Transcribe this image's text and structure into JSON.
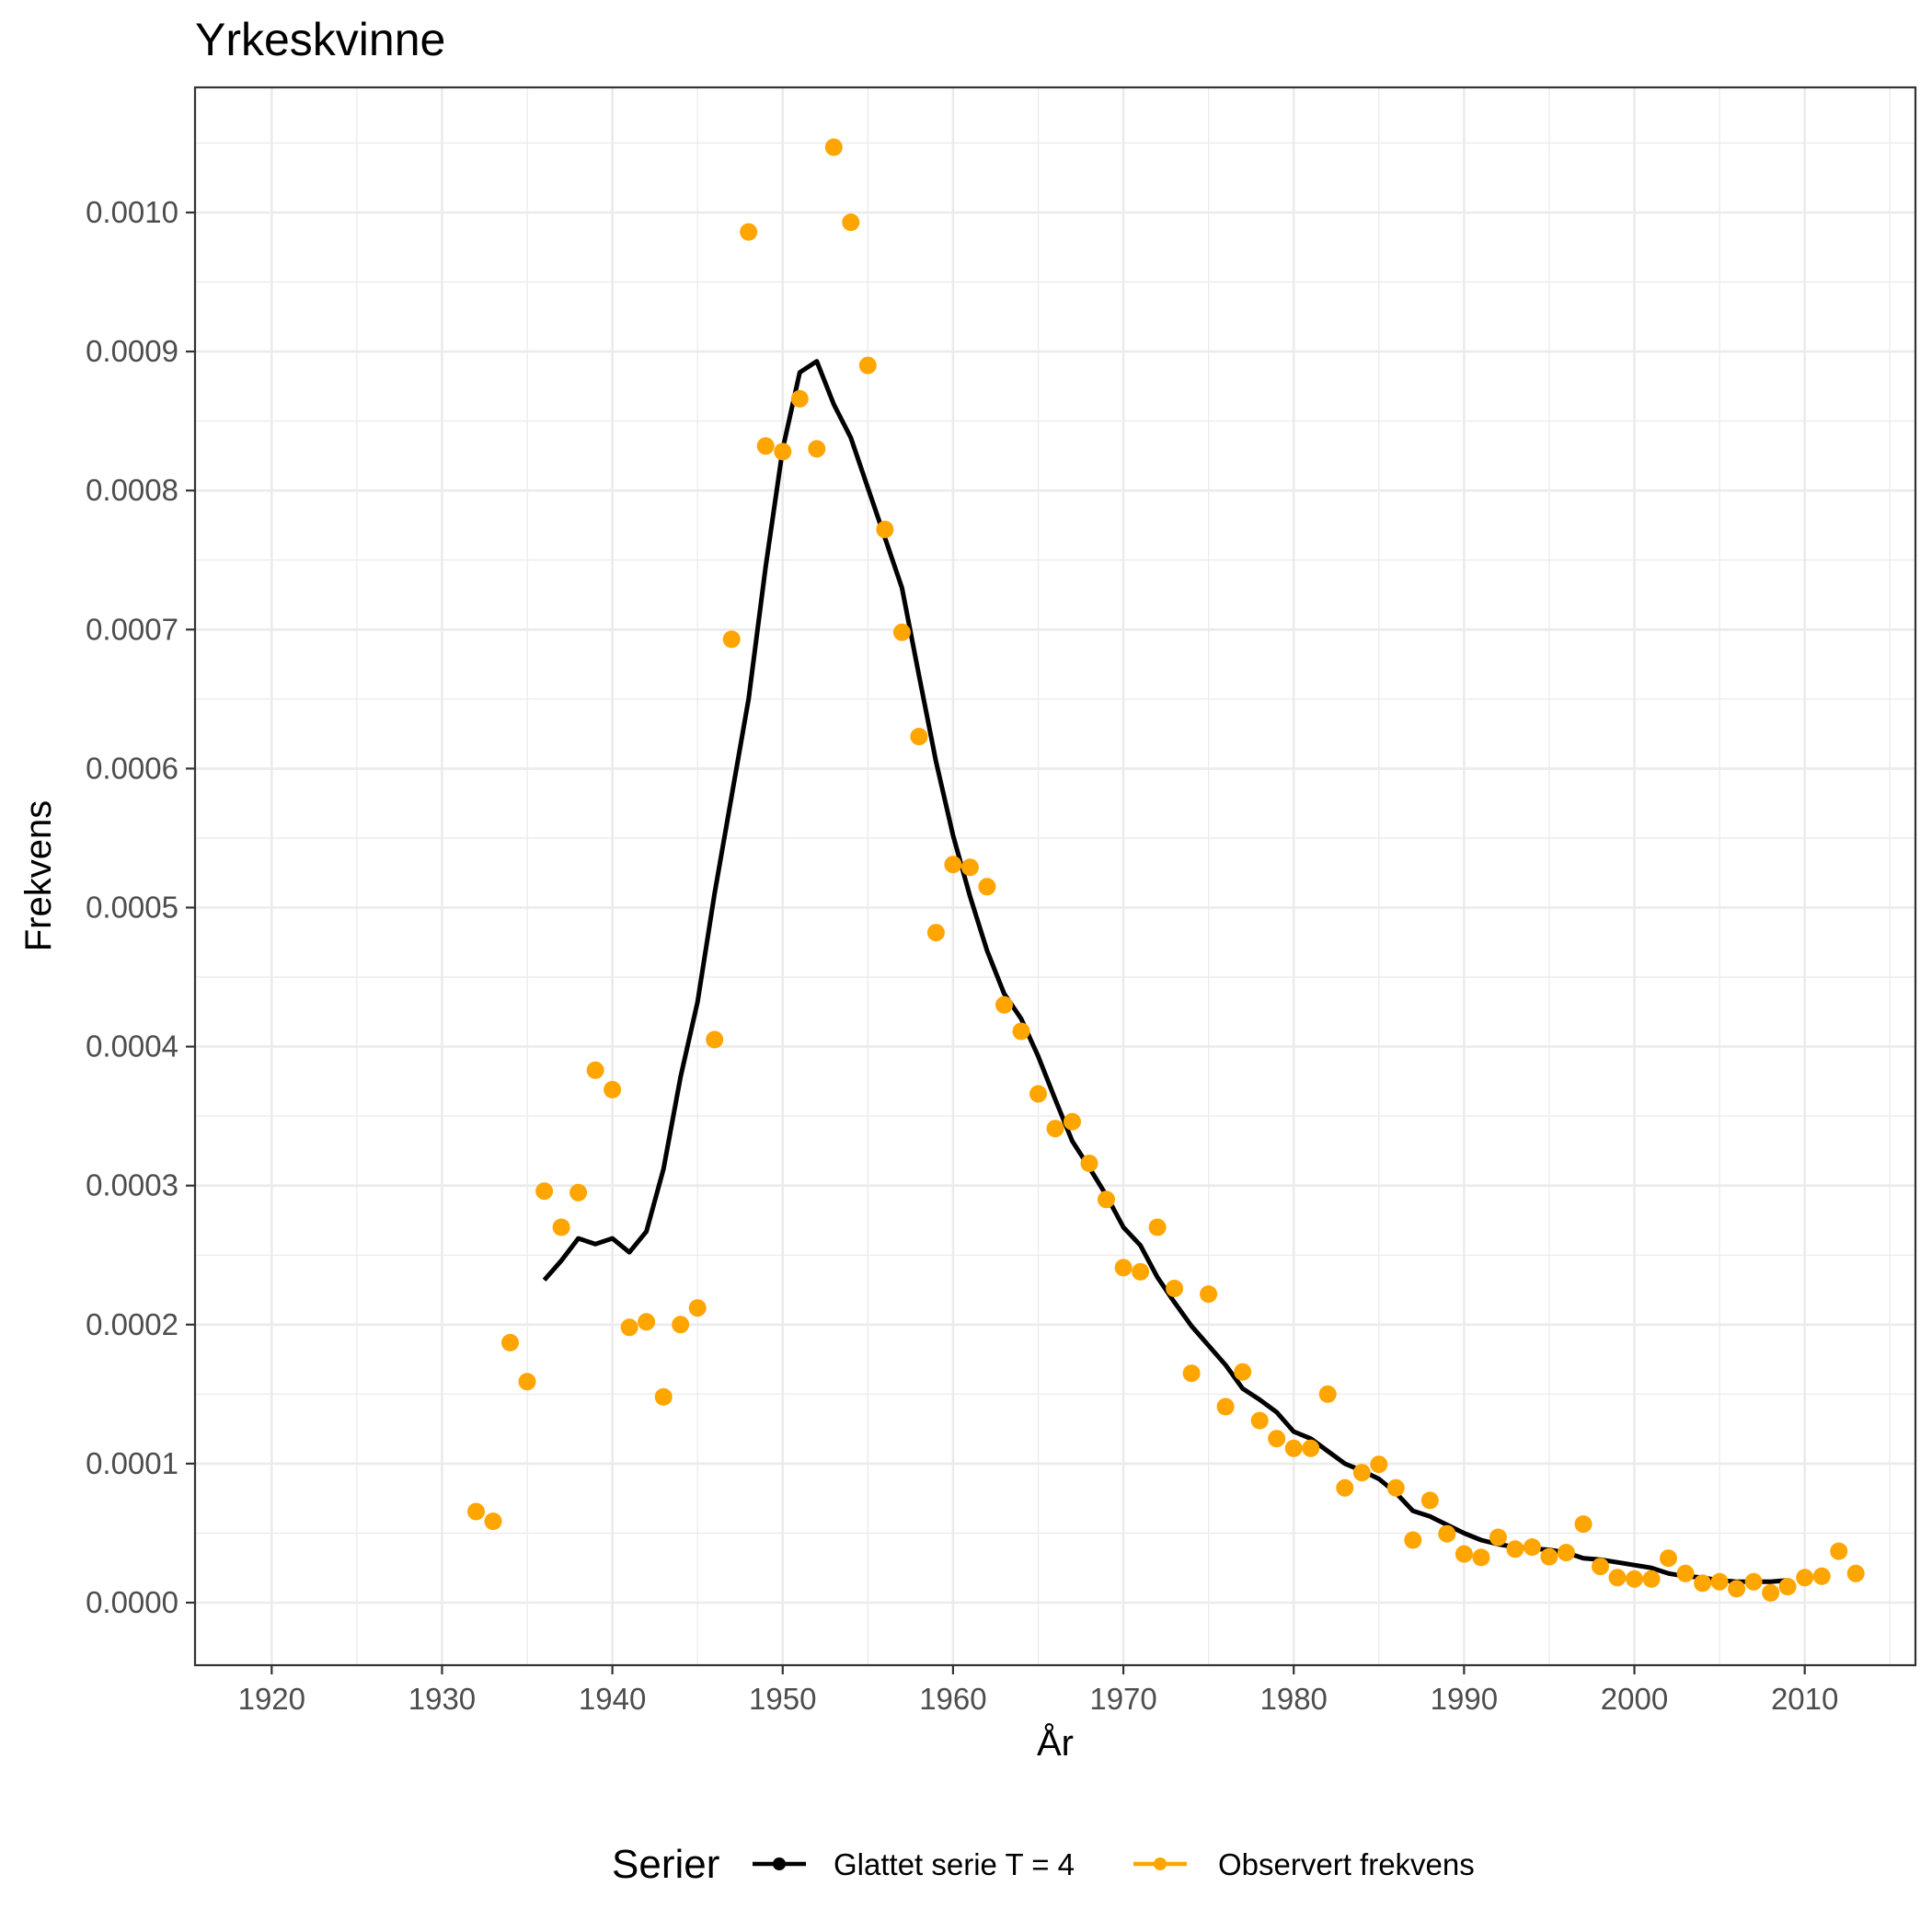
{
  "chart_data": {
    "type": "line",
    "title": "Yrkeskvinne",
    "xlabel": "År",
    "ylabel": "Frekvens",
    "xlim": [
      1915.5,
      2016.5
    ],
    "ylim": [
      -4.5e-05,
      0.00109
    ],
    "x_ticks": [
      1920,
      1930,
      1940,
      1950,
      1960,
      1970,
      1980,
      1990,
      2000,
      2010
    ],
    "x_tick_labels": [
      "1920",
      "1930",
      "1940",
      "1950",
      "1960",
      "1970",
      "1980",
      "1990",
      "2000",
      "2010"
    ],
    "y_ticks": [
      0,
      0.0001,
      0.0002,
      0.0003,
      0.0004,
      0.0005,
      0.0006,
      0.0007,
      0.0008,
      0.0009,
      0.001
    ],
    "y_tick_labels": [
      "0.0000",
      "0.0001",
      "0.0002",
      "0.0003",
      "0.0004",
      "0.0005",
      "0.0006",
      "0.0007",
      "0.0008",
      "0.0009",
      "0.0010"
    ],
    "grid": true,
    "legend": {
      "title": "Serier",
      "position": "bottom",
      "entries": [
        "Glattet serie T  = 4",
        "Observert frekvens"
      ]
    },
    "colors": {
      "smoothed": "#000000",
      "observed": "#FFA500"
    },
    "series": [
      {
        "name": "Glattet serie T  = 4",
        "kind": "line",
        "x": [
          1936,
          1937,
          1938,
          1939,
          1940,
          1941,
          1942,
          1943,
          1944,
          1945,
          1946,
          1947,
          1948,
          1949,
          1950,
          1951,
          1952,
          1953,
          1954,
          1955,
          1956,
          1957,
          1958,
          1959,
          1960,
          1961,
          1962,
          1963,
          1964,
          1965,
          1966,
          1967,
          1968,
          1969,
          1970,
          1971,
          1972,
          1973,
          1974,
          1975,
          1976,
          1977,
          1978,
          1979,
          1980,
          1981,
          1982,
          1983,
          1984,
          1985,
          1986,
          1987,
          1988,
          1989,
          1990,
          1991,
          1992,
          1993,
          1994,
          1995,
          1996,
          1997,
          1998,
          1999,
          2000,
          2001,
          2002,
          2003,
          2004,
          2005,
          2006,
          2007,
          2008,
          2009
        ],
        "y": [
          0.000232,
          0.000246,
          0.000262,
          0.000258,
          0.000262,
          0.000252,
          0.000267,
          0.000312,
          0.000378,
          0.000432,
          0.00051,
          0.00058,
          0.00065,
          0.000745,
          0.00083,
          0.000885,
          0.000893,
          0.000862,
          0.000838,
          0.000802,
          0.000766,
          0.00073,
          0.000667,
          0.000605,
          0.000552,
          0.000508,
          0.000469,
          0.000438,
          0.00042,
          0.000393,
          0.000362,
          0.000332,
          0.000313,
          0.000293,
          0.00027,
          0.000257,
          0.000234,
          0.000216,
          0.000199,
          0.000185,
          0.000171,
          0.000154,
          0.000146,
          0.000137,
          0.000123,
          0.000118,
          0.000109,
          0.0001,
          9.5e-05,
          8.9e-05,
          7.9e-05,
          6.6e-05,
          6.2e-05,
          5.6e-05,
          5e-05,
          4.5e-05,
          4.2e-05,
          4e-05,
          3.9e-05,
          3.8e-05,
          3.6e-05,
          3.2e-05,
          3.1e-05,
          2.9e-05,
          2.7e-05,
          2.5e-05,
          2.1e-05,
          1.9e-05,
          1.8e-05,
          1.6e-05,
          1.5e-05,
          1.5e-05,
          1.5e-05,
          1.6e-05
        ]
      },
      {
        "name": "Observert frekvens",
        "kind": "scatter",
        "x": [
          1932,
          1933,
          1934,
          1935,
          1936,
          1937,
          1938,
          1939,
          1940,
          1941,
          1942,
          1943,
          1944,
          1945,
          1946,
          1947,
          1948,
          1949,
          1950,
          1951,
          1952,
          1953,
          1954,
          1955,
          1956,
          1957,
          1958,
          1959,
          1960,
          1961,
          1962,
          1963,
          1964,
          1965,
          1966,
          1967,
          1968,
          1969,
          1970,
          1971,
          1972,
          1973,
          1974,
          1975,
          1976,
          1977,
          1978,
          1979,
          1980,
          1981,
          1982,
          1983,
          1984,
          1985,
          1986,
          1987,
          1988,
          1989,
          1990,
          1991,
          1992,
          1993,
          1994,
          1995,
          1996,
          1997,
          1998,
          1999,
          2000,
          2001,
          2002,
          2003,
          2004,
          2005,
          2006,
          2007,
          2008,
          2009,
          2010,
          2011,
          2012,
          2013
        ],
        "y": [
          6.55e-05,
          5.85e-05,
          0.000187,
          0.000159,
          0.000296,
          0.00027,
          0.000295,
          0.000383,
          0.000369,
          0.000198,
          0.000202,
          0.000148,
          0.0002,
          0.000212,
          0.000405,
          0.000693,
          0.000986,
          0.000832,
          0.000828,
          0.000866,
          0.00083,
          0.001047,
          0.000993,
          0.00089,
          0.000772,
          0.000698,
          0.000623,
          0.000482,
          0.000531,
          0.000529,
          0.000515,
          0.00043,
          0.000411,
          0.000366,
          0.000341,
          0.000346,
          0.000316,
          0.00029,
          0.000241,
          0.000238,
          0.00027,
          0.000226,
          0.000165,
          0.000222,
          0.000141,
          0.000166,
          0.000131,
          0.000118,
          0.000111,
          0.000111,
          0.00015,
          8.25e-05,
          9.35e-05,
          9.95e-05,
          8.25e-05,
          4.5e-05,
          7.35e-05,
          4.95e-05,
          3.5e-05,
          3.25e-05,
          4.7e-05,
          3.85e-05,
          4e-05,
          3.3e-05,
          3.6e-05,
          5.65e-05,
          2.6e-05,
          1.8e-05,
          1.7e-05,
          1.7e-05,
          3.2e-05,
          2.1e-05,
          1.4e-05,
          1.5e-05,
          1e-05,
          1.5e-05,
          7e-06,
          1.15e-05,
          1.8e-05,
          1.9e-05,
          3.7e-05,
          2.1e-05
        ]
      }
    ]
  }
}
